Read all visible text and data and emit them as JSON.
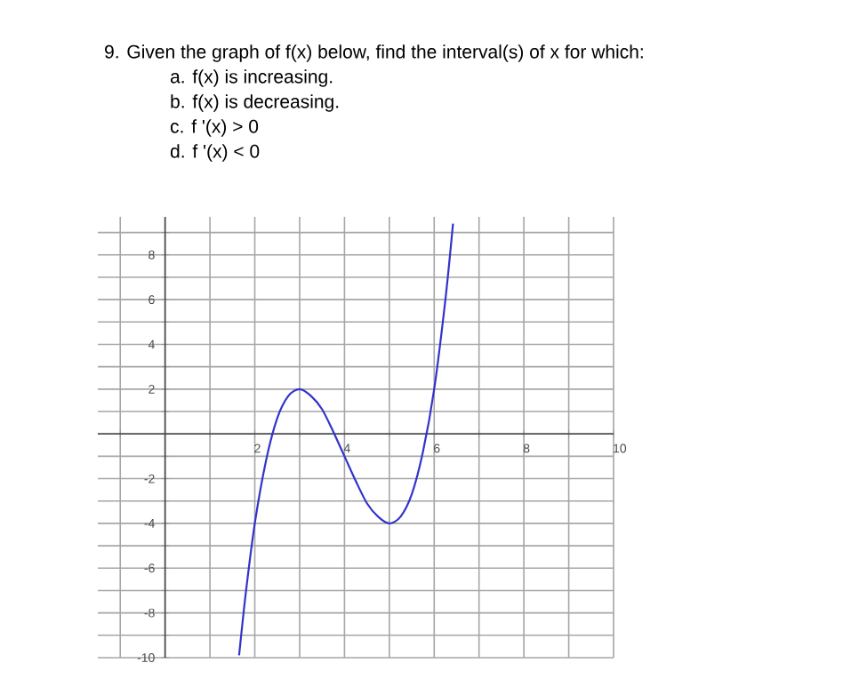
{
  "chart_data": {
    "type": "line",
    "title": "9.  Given the graph of f(x) below, find the interval(s) of x for which:",
    "annotations": [
      "a.   f(x) is increasing.",
      "b.   f(x) is decreasing.",
      "c.   f '(x) > 0",
      "d.   f '(x) < 0"
    ],
    "x": [
      1.65,
      1.8,
      2,
      2.25,
      2.5,
      2.75,
      3,
      3.25,
      3.5,
      3.75,
      4,
      4.25,
      4.5,
      4.75,
      5,
      5.25,
      5.5,
      5.75,
      6,
      6.25,
      6.42
    ],
    "series": [
      {
        "color": "#3333cc",
        "values": [
          -9.9,
          -7.1,
          -4,
          -1.2,
          0.7,
          1.7,
          2,
          1.7,
          1.1,
          0.1,
          -1,
          -2.1,
          -3.1,
          -3.7,
          -4,
          -3.7,
          -2.7,
          -0.8,
          2,
          6,
          9.4
        ]
      }
    ],
    "xlim": [
      -1.5,
      10
    ],
    "ylim": [
      -10,
      9.7
    ],
    "xticks": [
      {
        "value": -1,
        "label": null
      },
      {
        "value": 0,
        "label": null
      },
      {
        "value": 1,
        "label": null
      },
      2,
      {
        "value": 3,
        "label": null
      },
      4,
      {
        "value": 5,
        "label": null
      },
      6,
      {
        "value": 7,
        "label": null
      },
      8,
      {
        "value": 9,
        "label": null
      },
      10
    ],
    "yticks": [
      -10,
      {
        "value": -9,
        "label": null
      },
      -8,
      {
        "value": -7,
        "label": null
      },
      -6,
      {
        "value": -5,
        "label": null
      },
      -4,
      {
        "value": -3,
        "label": null
      },
      -2,
      {
        "value": -1,
        "label": null
      },
      {
        "value": 0,
        "label": null
      },
      {
        "value": 1,
        "label": null
      },
      2,
      {
        "value": 3,
        "label": null
      },
      4,
      {
        "value": 5,
        "label": null
      },
      6,
      {
        "value": 7,
        "label": null
      },
      8,
      {
        "value": 9,
        "label": null
      }
    ],
    "grid": true,
    "marker": "none",
    "line_style": "solid"
  }
}
